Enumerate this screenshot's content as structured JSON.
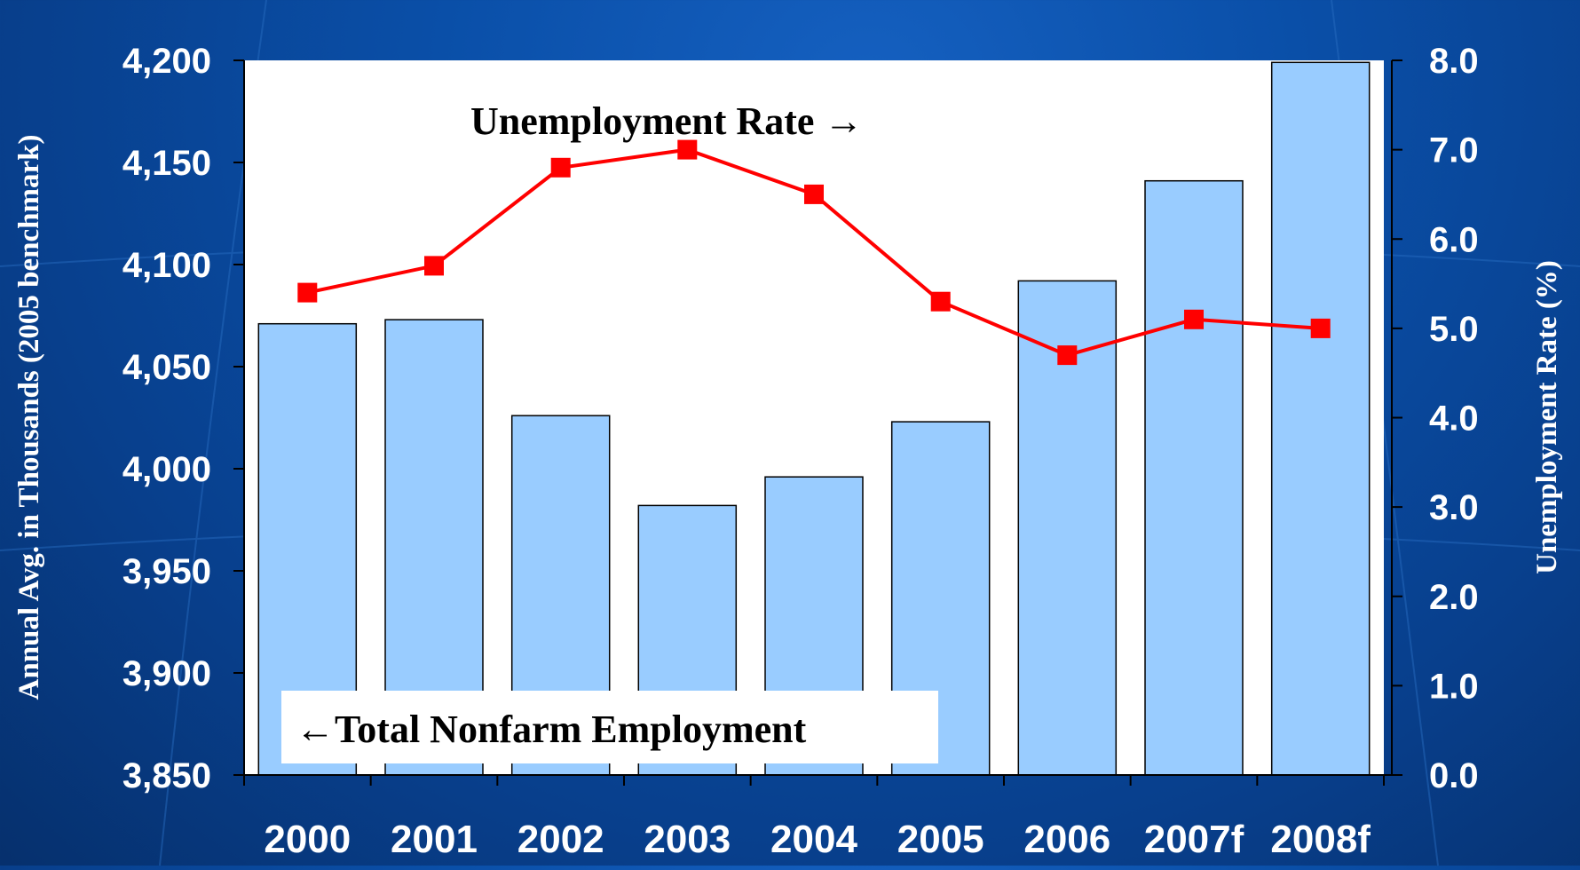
{
  "chart_data": {
    "type": "bar+line",
    "categories": [
      "2000",
      "2001",
      "2002",
      "2003",
      "2004",
      "2005",
      "2006",
      "2007f",
      "2008f"
    ],
    "series": [
      {
        "name": "Total Nonfarm Employment",
        "type": "bar",
        "axis": "left",
        "values": [
          4071,
          4073,
          4026,
          3982,
          3996,
          4023,
          4092,
          4141,
          4199
        ]
      },
      {
        "name": "Unemployment Rate",
        "type": "line",
        "axis": "right",
        "values": [
          5.4,
          5.7,
          6.8,
          7.0,
          6.5,
          5.3,
          4.7,
          5.1,
          5.0
        ]
      }
    ],
    "y_left": {
      "label": "Annual Avg. in Thousands (2005 benchmark)",
      "lim": [
        3850,
        4200
      ],
      "ticks": [
        "3,850",
        "3,900",
        "3,950",
        "4,000",
        "4,050",
        "4,100",
        "4,150",
        "4,200"
      ]
    },
    "y_right": {
      "label": "Unemployment Rate (%)",
      "lim": [
        0,
        8
      ],
      "ticks": [
        "0.0",
        "1.0",
        "2.0",
        "3.0",
        "4.0",
        "5.0",
        "6.0",
        "7.0",
        "8.0"
      ]
    },
    "annotations": {
      "line_label": "Unemployment Rate →",
      "bar_label": "←Total Nonfarm Employment"
    },
    "colors": {
      "bar_fill": "#99ccff",
      "bar_stroke": "#000000",
      "line": "#ff0000",
      "marker": "#ff0000",
      "plot_background": "#ffffff"
    },
    "grid": false
  }
}
